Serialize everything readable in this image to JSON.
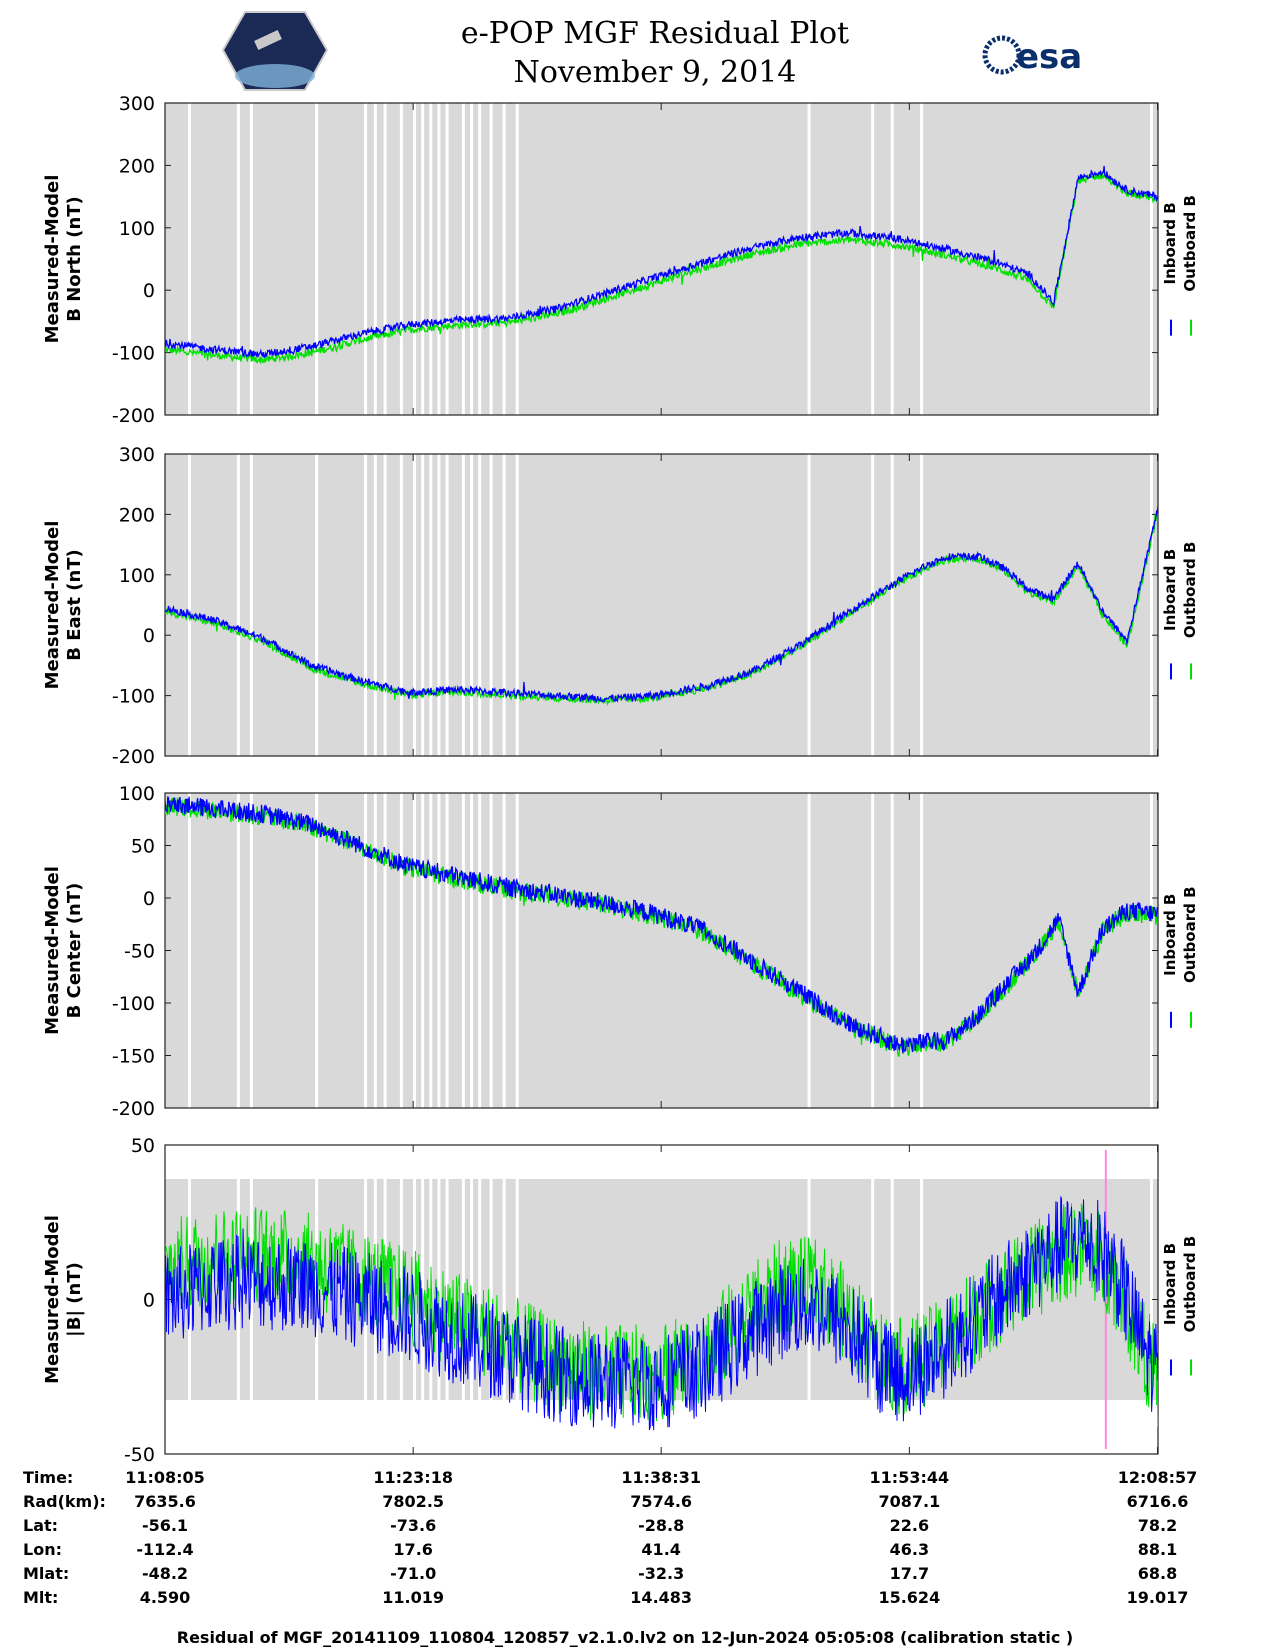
{
  "header": {
    "title_line1": "e-POP MGF Residual Plot",
    "title_line2": "November 9, 2014",
    "left_logo": "cassiope-mission-logo",
    "right_logo_text": "esa",
    "colors": {
      "brand_esa": "#0b2f6b"
    }
  },
  "legend": {
    "inboard_label": "Inboard B",
    "outboard_label": "Outboard B",
    "inboard_color": "#0000ff",
    "outboard_color": "#00e000"
  },
  "colors": {
    "panel_bg": "#d9d9d9",
    "gap": "#ffffff",
    "marker": "#ff88dd"
  },
  "chart_data": [
    {
      "type": "line",
      "name": "b-north",
      "ylabel_line1": "Measured-Model",
      "ylabel_line2": "B North (nT)",
      "ylim": [
        -200,
        300
      ],
      "yticks": [
        "300",
        "200",
        "100",
        "0",
        "-100",
        "-200"
      ],
      "x_minutes": [
        0,
        3,
        6,
        9,
        12,
        15,
        18,
        21,
        24,
        27,
        30,
        33,
        36,
        39,
        42,
        45,
        48,
        51,
        53,
        54.5,
        56,
        57.5,
        59,
        60.9
      ],
      "series": [
        {
          "name": "Inboard B",
          "values": [
            -85,
            -95,
            -103,
            -90,
            -70,
            -55,
            -48,
            -45,
            -30,
            -5,
            20,
            45,
            68,
            85,
            92,
            82,
            65,
            45,
            25,
            -20,
            180,
            190,
            160,
            150
          ]
        },
        {
          "name": "Outboard B",
          "values": [
            -95,
            -104,
            -112,
            -100,
            -80,
            -63,
            -56,
            -52,
            -38,
            -14,
            11,
            36,
            58,
            74,
            81,
            72,
            55,
            35,
            16,
            -28,
            175,
            185,
            155,
            145
          ]
        }
      ]
    },
    {
      "type": "line",
      "name": "b-east",
      "ylabel_line1": "Measured-Model",
      "ylabel_line2": "B East (nT)",
      "ylim": [
        -200,
        300
      ],
      "yticks": [
        "300",
        "200",
        "100",
        "0",
        "-100",
        "-200"
      ],
      "x_minutes": [
        0,
        3,
        6,
        9,
        12,
        15,
        18,
        21,
        24,
        27,
        30,
        33,
        36,
        39,
        42,
        45,
        47,
        48,
        50,
        51.5,
        53,
        54.5,
        56,
        57.5,
        59,
        60.9
      ],
      "series": [
        {
          "name": "Inboard B",
          "values": [
            45,
            25,
            -5,
            -50,
            -75,
            -95,
            -90,
            -95,
            -100,
            -105,
            -100,
            -85,
            -60,
            -15,
            40,
            90,
            120,
            130,
            130,
            110,
            75,
            60,
            120,
            40,
            -10,
            210
          ]
        },
        {
          "name": "Outboard B",
          "values": [
            40,
            20,
            -10,
            -55,
            -80,
            -99,
            -94,
            -99,
            -104,
            -108,
            -104,
            -89,
            -64,
            -19,
            36,
            86,
            116,
            126,
            126,
            106,
            70,
            55,
            115,
            35,
            -18,
            205
          ]
        }
      ]
    },
    {
      "type": "line",
      "name": "b-center",
      "ylabel_line1": "Measured-Model",
      "ylabel_line2": "B Center (nT)",
      "ylim": [
        -200,
        100
      ],
      "yticks": [
        "100",
        "50",
        "0",
        "-50",
        "-100",
        "-150",
        "-200"
      ],
      "x_minutes": [
        0,
        3,
        6,
        9,
        12,
        15,
        18,
        21,
        24,
        27,
        30,
        33,
        36,
        39,
        42,
        45,
        48,
        50,
        52,
        53.5,
        54.8,
        56,
        57.5,
        59,
        60.9
      ],
      "series": [
        {
          "name": "Inboard B",
          "values": [
            90,
            85,
            80,
            70,
            50,
            30,
            20,
            10,
            3,
            -5,
            -15,
            -30,
            -60,
            -90,
            -120,
            -140,
            -135,
            -110,
            -75,
            -50,
            -20,
            -90,
            -30,
            -12,
            -15
          ]
        },
        {
          "name": "Outboard B",
          "values": [
            88,
            83,
            78,
            68,
            48,
            28,
            18,
            8,
            1,
            -7,
            -17,
            -32,
            -62,
            -92,
            -122,
            -142,
            -137,
            -112,
            -77,
            -52,
            -22,
            -92,
            -32,
            -14,
            -17
          ]
        }
      ]
    },
    {
      "type": "line",
      "name": "b-magnitude",
      "ylabel_line1": "Measured-Model",
      "ylabel_line2": "|B| (nT)",
      "ylim": [
        -50,
        50
      ],
      "yticks": [
        "50",
        "0",
        "-50"
      ],
      "x_minutes": [
        0,
        3,
        6,
        9,
        12,
        15,
        18,
        21,
        24,
        27,
        30,
        33,
        36,
        38,
        40,
        42,
        44,
        45,
        47,
        50,
        53,
        55,
        56.5,
        58,
        59,
        60,
        60.9
      ],
      "series": [
        {
          "name": "Inboard B",
          "values": [
            0,
            5,
            6,
            4,
            0,
            -5,
            -12,
            -18,
            -24,
            -27,
            -27,
            -22,
            -10,
            -3,
            -2,
            -10,
            -22,
            -25,
            -20,
            -5,
            10,
            18,
            20,
            12,
            0,
            -15,
            -25
          ]
        },
        {
          "name": "Outboard B",
          "values": [
            10,
            14,
            15,
            12,
            7,
            1,
            -7,
            -14,
            -21,
            -24,
            -24,
            -18,
            -4,
            5,
            4,
            -6,
            -18,
            -22,
            -18,
            -4,
            8,
            15,
            17,
            10,
            -2,
            -16,
            -26
          ]
        }
      ]
    }
  ],
  "time_ticks": [
    {
      "minute": 0,
      "time": "11:08:05",
      "rad": "7635.6",
      "lat": "-56.1",
      "lon": "-112.4",
      "mlat": "-48.2",
      "mlt": "4.590"
    },
    {
      "minute": 15.22,
      "time": "11:23:18",
      "rad": "7802.5",
      "lat": "-73.6",
      "lon": "17.6",
      "mlat": "-71.0",
      "mlt": "11.019"
    },
    {
      "minute": 30.43,
      "time": "11:38:31",
      "rad": "7574.6",
      "lat": "-28.8",
      "lon": "41.4",
      "mlat": "-32.3",
      "mlt": "14.483"
    },
    {
      "minute": 45.65,
      "time": "11:53:44",
      "rad": "7087.1",
      "lat": "22.6",
      "lon": "46.3",
      "mlat": "17.7",
      "mlt": "15.624"
    },
    {
      "minute": 60.87,
      "time": "12:08:57",
      "rad": "6716.6",
      "lat": "78.2",
      "lon": "88.1",
      "mlat": "68.8",
      "mlt": "19.017"
    }
  ],
  "table_row_labels": {
    "time": "Time:",
    "rad": "Rad(km):",
    "lat": "Lat:",
    "lon": "Lon:",
    "mlat": "Mlat:",
    "mlt": "Mlt:"
  },
  "gap_minutes": [
    1.5,
    4.5,
    5.3,
    9.3,
    12.3,
    12.9,
    13.5,
    14.5,
    15.3,
    15.8,
    16.3,
    16.8,
    17.3,
    18.3,
    18.8,
    19.3,
    20,
    20.8,
    21.6,
    39.5,
    43.4,
    44.6,
    46.4,
    60.5
  ],
  "magnitude_marker_minute": 57.7,
  "footer": "Residual of MGF_20141109_110804_120857_v2.1.0.lv2 on 12-Jun-2024 05:05:08 (calibration static )"
}
